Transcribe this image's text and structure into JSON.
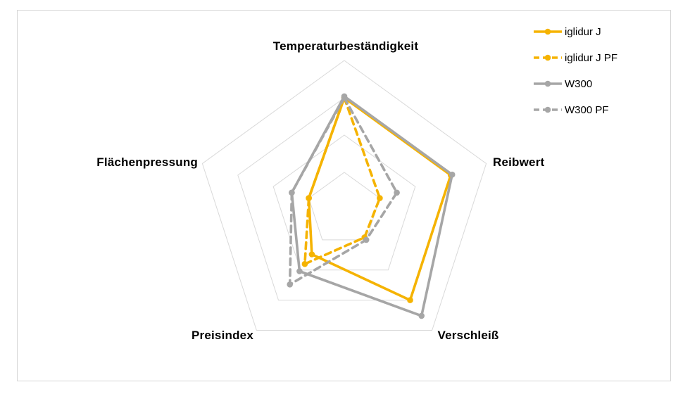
{
  "chart_data": {
    "type": "radar",
    "title": "",
    "categories": [
      "Temperaturbeständigkeit",
      "Reibwert",
      "Verschleiß",
      "Preisindex",
      "Flächenpressung"
    ],
    "axis_range": [
      0,
      1
    ],
    "grid_rings": [
      0.25,
      0.5,
      0.75,
      1.0
    ],
    "grid_on": true,
    "grid_color": "#D9D9D9",
    "legend_position": "top-right",
    "series": [
      {
        "name": "iglidur J",
        "color": "#F5B301",
        "style": "solid",
        "values": [
          0.75,
          0.75,
          0.75,
          0.37,
          0.25
        ]
      },
      {
        "name": "iglidur J PF",
        "color": "#F5B301",
        "style": "dashed",
        "values": [
          0.75,
          0.25,
          0.23,
          0.45,
          0.25
        ]
      },
      {
        "name": "W300",
        "color": "#A6A6A6",
        "style": "solid",
        "values": [
          0.76,
          0.76,
          0.88,
          0.51,
          0.37
        ]
      },
      {
        "name": "W300 PF",
        "color": "#A6A6A6",
        "style": "dashed",
        "values": [
          0.75,
          0.37,
          0.25,
          0.62,
          0.37
        ]
      }
    ]
  },
  "frame": {
    "border_color": "#D6D6D6"
  }
}
